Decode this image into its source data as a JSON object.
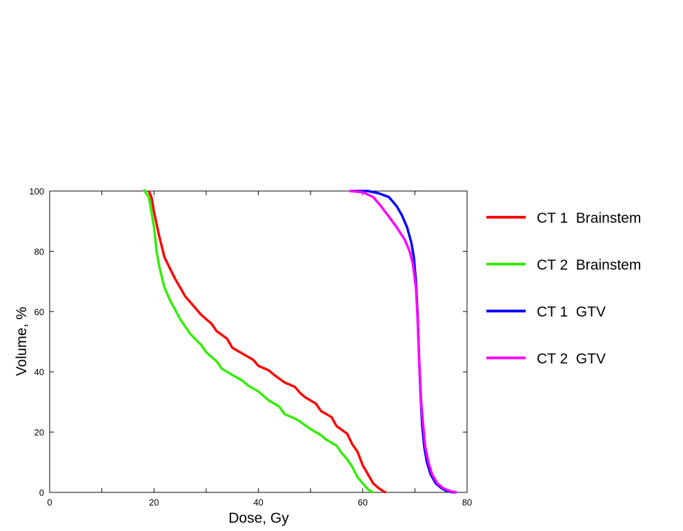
{
  "chart_data": {
    "type": "line",
    "title": "",
    "xlabel": "Dose, Gy",
    "ylabel": "Volume, %",
    "xlim": [
      0,
      80
    ],
    "ylim": [
      0,
      100
    ],
    "x_ticks": [
      0,
      20,
      40,
      60,
      80
    ],
    "x_minor_ticks": [
      10,
      30,
      50,
      70
    ],
    "y_ticks": [
      0,
      20,
      40,
      60,
      80,
      100
    ],
    "grid": false,
    "legend_position": "right",
    "series": [
      {
        "name": "CT 1  Brainstem",
        "color": "#ff0000",
        "x": [
          19,
          19.5,
          20,
          21,
          22,
          24,
          26,
          28,
          29,
          31,
          32,
          34,
          35,
          37,
          39,
          40,
          42,
          43,
          45,
          47,
          48,
          49,
          51,
          52,
          54,
          55,
          57,
          58,
          59,
          60,
          61,
          62,
          63,
          64,
          64.5
        ],
        "y": [
          100,
          98,
          93,
          85,
          78,
          71,
          65,
          61,
          59,
          56,
          53.5,
          51,
          48,
          46,
          44,
          42,
          40.5,
          39,
          36.5,
          35,
          33,
          31.5,
          29.5,
          27,
          25,
          22,
          19.5,
          16,
          13.5,
          9,
          6,
          3,
          1.5,
          0.3,
          0
        ]
      },
      {
        "name": "CT 2  Brainstem",
        "color": "#33ee00",
        "x": [
          18,
          19,
          20,
          20.5,
          21,
          22,
          23,
          25,
          26,
          27,
          29,
          30,
          32,
          33,
          35,
          37,
          38,
          40,
          42,
          44,
          45,
          47,
          48,
          50,
          52,
          53,
          55,
          56,
          57,
          58,
          59,
          60,
          61,
          62
        ],
        "y": [
          100.5,
          98,
          88,
          80,
          75,
          68,
          64,
          57.5,
          55,
          52.5,
          49,
          46.5,
          43.5,
          41,
          39,
          37,
          35.5,
          33.5,
          30.5,
          28.5,
          26,
          24.5,
          23.5,
          21,
          19,
          17.5,
          15.5,
          13,
          11,
          8.5,
          5,
          3,
          1,
          0
        ]
      },
      {
        "name": "CT 1  GTV",
        "color": "#0000ff",
        "x": [
          57.5,
          61,
          63,
          65,
          66.5,
          67.5,
          68.5,
          69.3,
          69.8,
          70.2,
          70.5,
          70.8,
          71.1,
          71.4,
          71.8,
          72.3,
          73,
          74,
          75,
          76,
          77,
          78
        ],
        "y": [
          100,
          100,
          99.3,
          98,
          95,
          92,
          88,
          83,
          78,
          70,
          60,
          45,
          32,
          22,
          15,
          10,
          6,
          3,
          1.5,
          0.5,
          0.1,
          0
        ]
      },
      {
        "name": "CT 2  GTV",
        "color": "#ff00ff",
        "x": [
          57.5,
          60,
          62,
          63.5,
          65,
          66.5,
          68,
          69,
          69.6,
          70.2,
          70.5,
          70.8,
          71.2,
          71.6,
          72,
          72.6,
          73.3,
          74.3,
          75.5,
          76.8,
          78
        ],
        "y": [
          100,
          99.6,
          98,
          95,
          91.5,
          88,
          84,
          80,
          76,
          68,
          58,
          45,
          30,
          22,
          15,
          10,
          6,
          3,
          1.3,
          0.4,
          0
        ]
      }
    ]
  }
}
